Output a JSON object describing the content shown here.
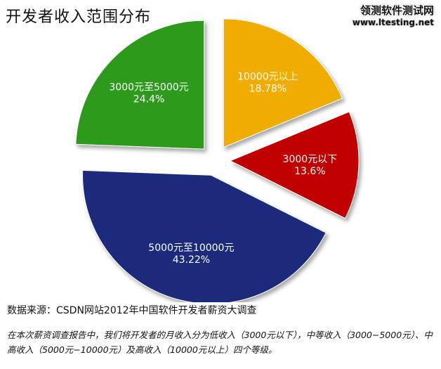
{
  "title": "开发者收入范围分布",
  "logo": {
    "main": "领测软件测试网",
    "url": "www.ltesting.net"
  },
  "source": "数据来源：CSDN网站2012年中国软件开发者薪资大调查",
  "note": "在本次薪资调查报告中，我们将开发者的月收入分为低收入（3000元以下），中等收入（3000−5000元）、中高收入（5000元−10000元）及高收入（10000元以上）四个等级。",
  "chart_data": {
    "type": "pie",
    "title": "开发者收入范围分布",
    "slices": [
      {
        "label": "10000元以上",
        "percent_label": "18.78%",
        "value": 18.78,
        "color": "#f0ad00"
      },
      {
        "label": "3000元以下",
        "percent_label": "13.6%",
        "value": 13.6,
        "color": "#c00000"
      },
      {
        "label": "5000元至10000元",
        "percent_label": "43.22%",
        "value": 43.22,
        "color": "#1f2a7c"
      },
      {
        "label": "3000元至5000元",
        "percent_label": "24.4%",
        "value": 24.4,
        "color": "#2e9a1a"
      }
    ],
    "exploded": true,
    "legend": "none"
  }
}
